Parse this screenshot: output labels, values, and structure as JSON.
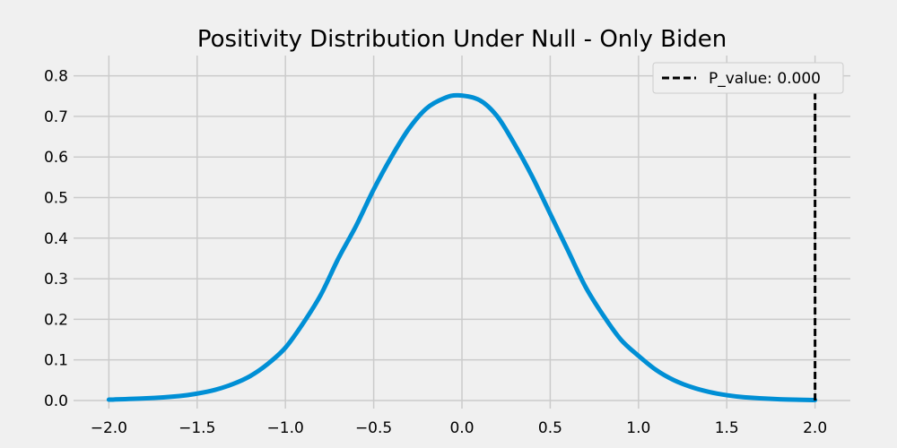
{
  "chart_data": {
    "type": "line",
    "title": "Positivity Distribution Under Null - Only Biden",
    "xlabel": "",
    "ylabel": "",
    "xlim": [
      -2.2,
      2.2
    ],
    "ylim": [
      -0.02,
      0.85
    ],
    "x_ticks": [
      -2.0,
      -1.5,
      -1.0,
      -0.5,
      0.0,
      0.5,
      1.0,
      1.5,
      2.0
    ],
    "x_tick_labels": [
      "−2.0",
      "−1.5",
      "−1.0",
      "−0.5",
      "0.0",
      "0.5",
      "1.0",
      "1.5",
      "2.0"
    ],
    "y_ticks": [
      0.0,
      0.1,
      0.2,
      0.3,
      0.4,
      0.5,
      0.6,
      0.7,
      0.8
    ],
    "y_tick_labels": [
      "0.0",
      "0.1",
      "0.2",
      "0.3",
      "0.4",
      "0.5",
      "0.6",
      "0.7",
      "0.8"
    ],
    "grid": true,
    "legend_position": "top-right",
    "series": [
      {
        "color": "#008fd5",
        "x": [
          -2.0,
          -1.8,
          -1.6,
          -1.5,
          -1.4,
          -1.3,
          -1.2,
          -1.1,
          -1.0,
          -0.9,
          -0.8,
          -0.7,
          -0.6,
          -0.5,
          -0.4,
          -0.3,
          -0.2,
          -0.1,
          -0.02,
          0.1,
          0.2,
          0.3,
          0.4,
          0.5,
          0.6,
          0.7,
          0.8,
          0.9,
          1.0,
          1.1,
          1.2,
          1.3,
          1.4,
          1.5,
          1.6,
          1.8,
          2.0
        ],
        "y": [
          0.002,
          0.005,
          0.011,
          0.017,
          0.026,
          0.04,
          0.06,
          0.09,
          0.13,
          0.19,
          0.26,
          0.35,
          0.43,
          0.52,
          0.6,
          0.67,
          0.72,
          0.745,
          0.752,
          0.74,
          0.7,
          0.63,
          0.55,
          0.46,
          0.37,
          0.28,
          0.21,
          0.15,
          0.11,
          0.075,
          0.05,
          0.033,
          0.021,
          0.013,
          0.008,
          0.003,
          0.001
        ]
      }
    ],
    "vline": {
      "x": 2.0,
      "y_top": 0.78,
      "color": "#000000",
      "style": "dashed",
      "label": "P_value: 0.000"
    }
  }
}
